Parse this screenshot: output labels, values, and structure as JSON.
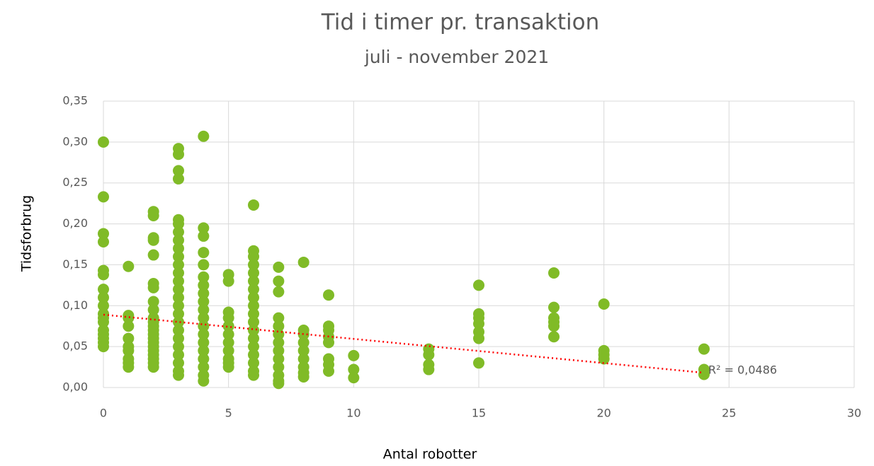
{
  "chart_data": {
    "type": "scatter",
    "title": "Tid i timer pr. transaktion",
    "subtitle": "juli - november 2021",
    "x_label": "Antal robotter",
    "y_label": "Tidsforbrug",
    "color": "#80bb27",
    "grid": true,
    "xlim": [
      0,
      30
    ],
    "xticks": [
      0,
      5,
      10,
      15,
      20,
      25,
      30
    ],
    "ylim": [
      0,
      0.35
    ],
    "yticks": [
      {
        "value": 0,
        "label": "0,00"
      },
      {
        "value": 0.05,
        "label": "0,05"
      },
      {
        "value": 0.1,
        "label": "0,10"
      },
      {
        "value": 0.15,
        "label": "0,15"
      },
      {
        "value": 0.2,
        "label": "0,20"
      },
      {
        "value": 0.25,
        "label": "0,25"
      },
      {
        "value": 0.3,
        "label": "0,30"
      },
      {
        "value": 0.35,
        "label": "0,35"
      }
    ],
    "x": [
      0,
      0,
      0,
      0,
      0,
      0,
      0,
      0,
      0,
      0,
      0,
      0,
      0,
      0,
      0,
      0,
      0,
      1,
      1,
      1,
      1,
      1,
      1,
      1,
      1,
      1,
      1,
      2,
      2,
      2,
      2,
      2,
      2,
      2,
      2,
      2,
      2,
      2,
      2,
      2,
      2,
      2,
      2,
      2,
      2,
      2,
      2,
      2,
      2,
      3,
      3,
      3,
      3,
      3,
      3,
      3,
      3,
      3,
      3,
      3,
      3,
      3,
      3,
      3,
      3,
      3,
      3,
      3,
      3,
      3,
      3,
      3,
      3,
      3,
      4,
      4,
      4,
      4,
      4,
      4,
      4,
      4,
      4,
      4,
      4,
      4,
      4,
      4,
      4,
      4,
      4,
      4,
      4,
      5,
      5,
      5,
      5,
      5,
      5,
      5,
      5,
      5,
      5,
      5,
      6,
      6,
      6,
      6,
      6,
      6,
      6,
      6,
      6,
      6,
      6,
      6,
      6,
      6,
      6,
      6,
      6,
      6,
      7,
      7,
      7,
      7,
      7,
      7,
      7,
      7,
      7,
      7,
      7,
      7,
      7,
      8,
      8,
      8,
      8,
      8,
      8,
      8,
      8,
      8,
      9,
      9,
      9,
      9,
      9,
      9,
      9,
      9,
      10,
      10,
      10,
      13,
      13,
      13,
      13,
      15,
      15,
      15,
      15,
      15,
      15,
      15,
      18,
      18,
      18,
      18,
      18,
      18,
      20,
      20,
      20,
      20,
      24,
      24,
      24
    ],
    "values": [
      0.3,
      0.233,
      0.188,
      0.178,
      0.143,
      0.138,
      0.12,
      0.11,
      0.1,
      0.09,
      0.085,
      0.08,
      0.07,
      0.065,
      0.06,
      0.055,
      0.05,
      0.148,
      0.088,
      0.085,
      0.075,
      0.06,
      0.05,
      0.045,
      0.035,
      0.03,
      0.025,
      0.215,
      0.21,
      0.183,
      0.18,
      0.162,
      0.127,
      0.122,
      0.105,
      0.095,
      0.085,
      0.08,
      0.075,
      0.07,
      0.065,
      0.06,
      0.055,
      0.05,
      0.045,
      0.04,
      0.035,
      0.03,
      0.025,
      0.292,
      0.285,
      0.265,
      0.255,
      0.205,
      0.2,
      0.19,
      0.18,
      0.17,
      0.16,
      0.15,
      0.14,
      0.13,
      0.12,
      0.11,
      0.1,
      0.09,
      0.08,
      0.07,
      0.06,
      0.05,
      0.04,
      0.03,
      0.02,
      0.015,
      0.307,
      0.195,
      0.185,
      0.165,
      0.15,
      0.135,
      0.125,
      0.115,
      0.105,
      0.095,
      0.085,
      0.075,
      0.065,
      0.055,
      0.045,
      0.035,
      0.025,
      0.015,
      0.008,
      0.138,
      0.13,
      0.092,
      0.085,
      0.075,
      0.065,
      0.055,
      0.045,
      0.035,
      0.03,
      0.025,
      0.223,
      0.167,
      0.16,
      0.15,
      0.14,
      0.13,
      0.12,
      0.11,
      0.1,
      0.09,
      0.08,
      0.07,
      0.06,
      0.05,
      0.04,
      0.03,
      0.02,
      0.015,
      0.147,
      0.13,
      0.117,
      0.085,
      0.075,
      0.065,
      0.055,
      0.045,
      0.035,
      0.025,
      0.015,
      0.008,
      0.005,
      0.153,
      0.07,
      0.065,
      0.055,
      0.045,
      0.035,
      0.025,
      0.018,
      0.013,
      0.113,
      0.075,
      0.07,
      0.062,
      0.055,
      0.035,
      0.028,
      0.02,
      0.039,
      0.022,
      0.012,
      0.047,
      0.04,
      0.028,
      0.022,
      0.125,
      0.09,
      0.085,
      0.078,
      0.068,
      0.06,
      0.03,
      0.14,
      0.098,
      0.085,
      0.08,
      0.075,
      0.062,
      0.102,
      0.045,
      0.04,
      0.035,
      0.047,
      0.022,
      0.016
    ],
    "trendline": {
      "color": "#ff0000",
      "x": [
        0,
        24
      ],
      "values": [
        0.089,
        0.018
      ]
    },
    "annotation": "R² = 0,0486"
  }
}
